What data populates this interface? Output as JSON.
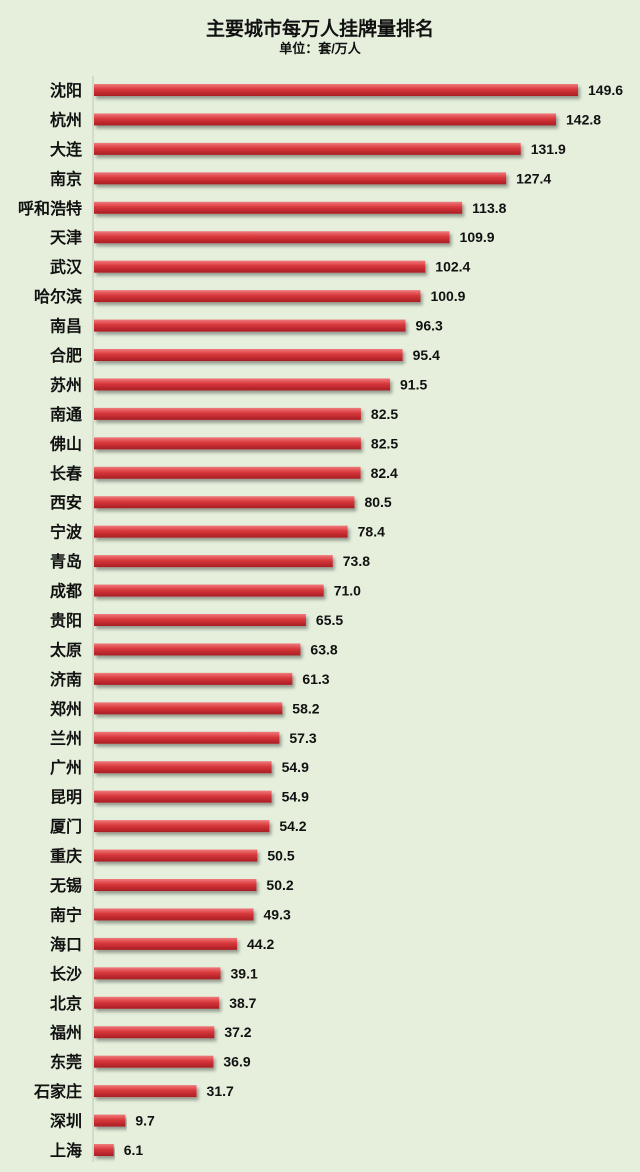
{
  "chart_data": {
    "type": "bar",
    "orientation": "horizontal",
    "title": "主要城市每万人挂牌量排名",
    "subtitle": "单位：套/万人",
    "categories": [
      "沈阳",
      "杭州",
      "大连",
      "南京",
      "呼和浩特",
      "天津",
      "武汉",
      "哈尔滨",
      "南昌",
      "合肥",
      "苏州",
      "南通",
      "佛山",
      "长春",
      "西安",
      "宁波",
      "青岛",
      "成都",
      "贵阳",
      "太原",
      "济南",
      "郑州",
      "兰州",
      "广州",
      "昆明",
      "厦门",
      "重庆",
      "无锡",
      "南宁",
      "海口",
      "长沙",
      "北京",
      "福州",
      "东莞",
      "石家庄",
      "深圳",
      "上海"
    ],
    "values": [
      149.6,
      142.8,
      131.9,
      127.4,
      113.8,
      109.9,
      102.4,
      100.9,
      96.3,
      95.4,
      91.5,
      82.5,
      82.5,
      82.4,
      80.5,
      78.4,
      73.8,
      71.0,
      65.5,
      63.8,
      61.3,
      58.2,
      57.3,
      54.9,
      54.9,
      54.2,
      50.5,
      50.2,
      49.3,
      44.2,
      39.1,
      38.7,
      37.2,
      36.9,
      31.7,
      9.7,
      6.1
    ],
    "xlim": [
      0,
      150
    ],
    "grid": false,
    "legend": "none",
    "data_labels": true,
    "bar_color": "#d83a3e",
    "background": "#e5efdc"
  }
}
